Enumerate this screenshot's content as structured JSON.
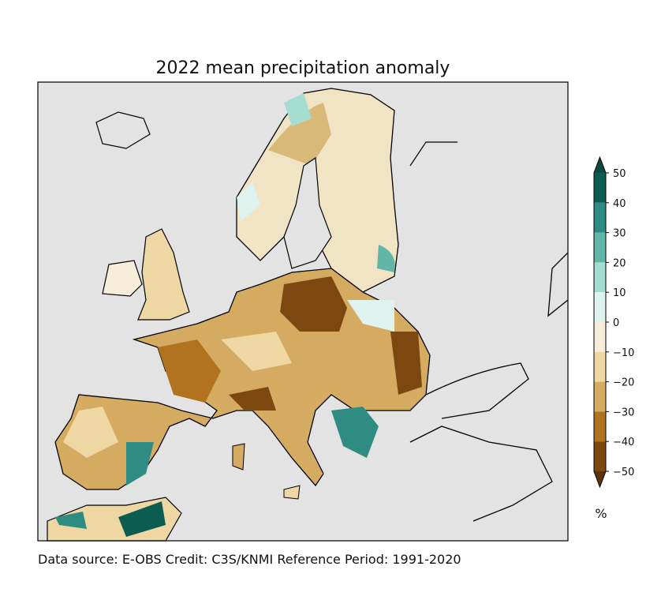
{
  "chart_data": {
    "type": "heatmap",
    "title": "2022 mean precipitation anomaly",
    "subject": "Europe",
    "colorbar": {
      "label": "%",
      "range": [
        -50,
        50
      ],
      "extend": "both",
      "ticks": [
        50,
        40,
        30,
        20,
        10,
        0,
        -10,
        -20,
        -30,
        -40,
        -50
      ],
      "tick_labels": [
        "50",
        "40",
        "30",
        "20",
        "10",
        "0",
        "−10",
        "−20",
        "−30",
        "−40",
        "−50"
      ],
      "levels": [
        {
          "from": 40,
          "to": 50,
          "color": "#0d5c52"
        },
        {
          "from": 30,
          "to": 40,
          "color": "#2f8c82"
        },
        {
          "from": 20,
          "to": 30,
          "color": "#62b6a7"
        },
        {
          "from": 10,
          "to": 20,
          "color": "#a6ddd1"
        },
        {
          "from": 0,
          "to": 10,
          "color": "#def2ee"
        },
        {
          "from": -10,
          "to": 0,
          "color": "#f6eedb"
        },
        {
          "from": -20,
          "to": -10,
          "color": "#eed7a2"
        },
        {
          "from": -30,
          "to": -20,
          "color": "#d4ab60"
        },
        {
          "from": -40,
          "to": -30,
          "color": "#b1731f"
        },
        {
          "from": -50,
          "to": -40,
          "color": "#7d4710"
        }
      ],
      "over_color": "#0a4a41",
      "under_color": "#5c3307"
    },
    "background_color": "#e3e3e3",
    "footer": "Data source: E-OBS  Credit: C3S/KNMI  Reference Period: 1991-2020"
  }
}
